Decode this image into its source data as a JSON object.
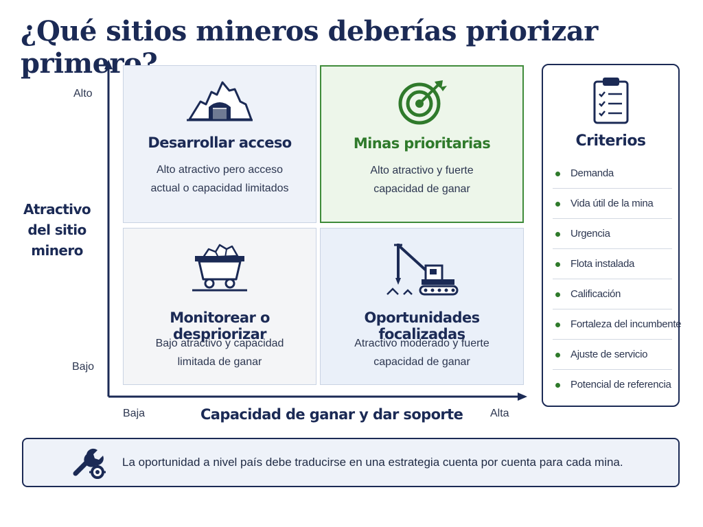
{
  "title": "¿Qué sitios mineros deberías priorizar primero?",
  "axes": {
    "y_title_line1": "Atractivo",
    "y_title_line2": "del sitio minero",
    "y_high": "Alto",
    "y_low": "Bajo",
    "x_title": "Capacidad de ganar y dar soporte",
    "x_low": "Baja",
    "x_high": "Alta"
  },
  "quadrants": {
    "top_left": {
      "title": "Desarrollar acceso",
      "desc_line1": "Alto atractivo pero acceso",
      "desc_line2": "actual o capacidad limitados",
      "icon": "mine-entrance-icon"
    },
    "top_right": {
      "title": "Minas prioritarias",
      "desc_line1": "Alto atractivo y fuerte",
      "desc_line2": "capacidad de ganar",
      "icon": "target-icon"
    },
    "bottom_left": {
      "title": "Monitorear o despriorizar",
      "desc_line1": "Bajo atractivo y capacidad",
      "desc_line2": "limitada de ganar",
      "icon": "mine-cart-icon"
    },
    "bottom_right": {
      "title": "Oportunidades focalizadas",
      "desc_line1": "Atractivo moderado y fuerte",
      "desc_line2": "capacidad de ganar",
      "icon": "drill-rig-icon"
    }
  },
  "criteria": {
    "title": "Criterios",
    "icon": "clipboard-checklist-icon",
    "items": [
      "Demanda",
      "Vida útil de la mina",
      "Urgencia",
      "Flota instalada",
      "Calificación",
      "Fortaleza del incumbente",
      "Ajuste de servicio",
      "Potencial de referencia"
    ]
  },
  "banner": {
    "text": "La oportunidad a nivel país debe traducirse en una estrategia cuenta por cuenta para cada mina.",
    "icon": "wrench-gear-icon"
  },
  "colors": {
    "navy": "#1b2a55",
    "green": "#2f7a2b",
    "quad_blue": "#eef2f9",
    "quad_green": "#edf6ea"
  }
}
